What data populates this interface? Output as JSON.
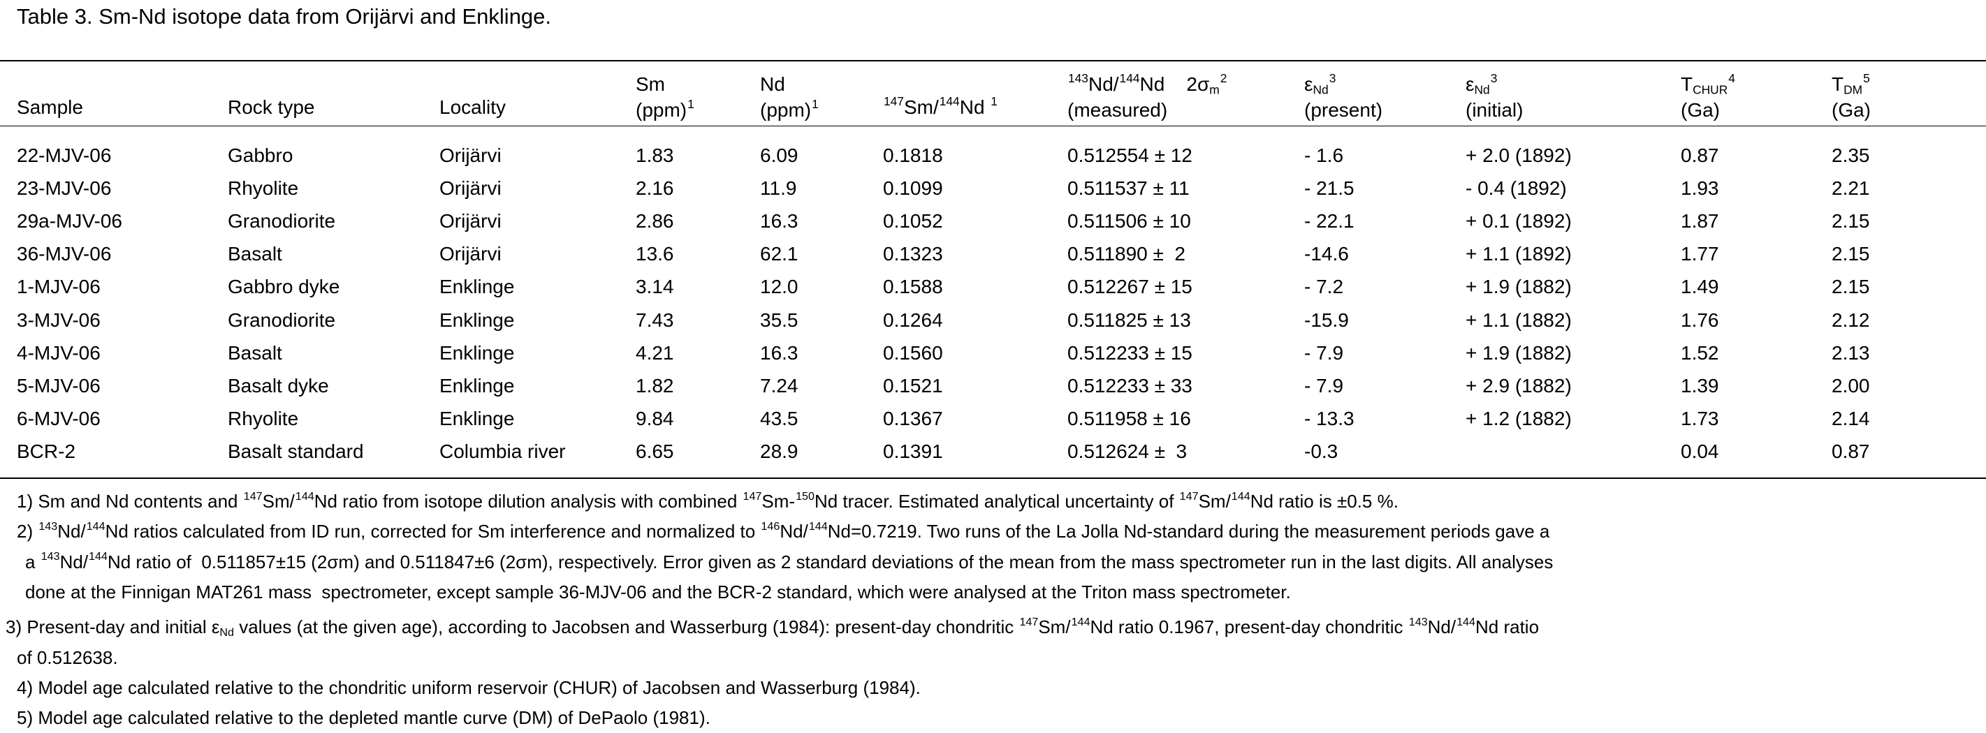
{
  "title": "Table 3. Sm-Nd isotope data from Orijärvi and Enklinge.",
  "table": {
    "header": [
      [
        [
          "Sample"
        ]
      ],
      [
        [
          "Rock type"
        ]
      ],
      [
        [
          "Locality"
        ]
      ],
      [
        [
          "Sm"
        ],
        [
          "(ppm)",
          {
            "sup": "1"
          }
        ]
      ],
      [
        [
          "Nd"
        ],
        [
          "(ppm)",
          {
            "sup": "1"
          }
        ]
      ],
      [
        [
          {
            "sup": "147"
          },
          "Sm/",
          {
            "sup": "144"
          },
          "Nd ",
          {
            "sup": "1"
          }
        ]
      ],
      [
        [
          {
            "sup": "143"
          },
          "Nd/",
          {
            "sup": "144"
          },
          "Nd    2σ",
          {
            "sub": "m"
          },
          {
            "sup": "2"
          }
        ],
        [
          "(measured)"
        ]
      ],
      [
        [
          "ε",
          {
            "sub": "Nd"
          },
          {
            "sup": "3"
          }
        ],
        [
          "(present)"
        ]
      ],
      [
        [
          "ε",
          {
            "sub": "Nd"
          },
          {
            "sup": "3"
          }
        ],
        [
          "(initial)"
        ]
      ],
      [
        [
          "T",
          {
            "sub": "CHUR"
          },
          {
            "sup": "4"
          }
        ],
        [
          "(Ga)"
        ]
      ],
      [
        [
          "T",
          {
            "sub": "DM"
          },
          {
            "sup": "5"
          }
        ],
        [
          "(Ga)"
        ]
      ]
    ],
    "rows": [
      [
        "22-MJV-06",
        "Gabbro",
        "Orijärvi",
        "1.83",
        "6.09",
        "0.1818",
        "0.512554 ± 12",
        "- 1.6",
        "+ 2.0 (1892)",
        "0.87",
        "2.35"
      ],
      [
        "23-MJV-06",
        "Rhyolite",
        "Orijärvi",
        "2.16",
        "11.9",
        "0.1099",
        "0.511537 ± 11",
        "- 21.5",
        "- 0.4 (1892)",
        "1.93",
        "2.21"
      ],
      [
        "29a-MJV-06",
        "Granodiorite",
        "Orijärvi",
        "2.86",
        "16.3",
        "0.1052",
        "0.511506 ± 10",
        "- 22.1",
        "+ 0.1 (1892)",
        "1.87",
        "2.15"
      ],
      [
        "36-MJV-06",
        "Basalt",
        "Orijärvi",
        "13.6",
        "62.1",
        "0.1323",
        "0.511890 ±  2",
        "-14.6",
        "+ 1.1 (1892)",
        "1.77",
        "2.15"
      ],
      [
        "1-MJV-06",
        "Gabbro dyke",
        "Enklinge",
        "3.14",
        "12.0",
        "0.1588",
        "0.512267 ± 15",
        "- 7.2",
        "+ 1.9 (1882)",
        "1.49",
        "2.15"
      ],
      [
        "3-MJV-06",
        "Granodiorite",
        "Enklinge",
        "7.43",
        "35.5",
        "0.1264",
        "0.511825 ± 13",
        "-15.9",
        "+ 1.1 (1882)",
        "1.76",
        "2.12"
      ],
      [
        "4-MJV-06",
        "Basalt",
        "Enklinge",
        "4.21",
        "16.3",
        "0.1560",
        "0.512233 ± 15",
        "- 7.9",
        "+ 1.9 (1882)",
        "1.52",
        "2.13"
      ],
      [
        "5-MJV-06",
        "Basalt dyke",
        "Enklinge",
        "1.82",
        "7.24",
        "0.1521",
        "0.512233 ± 33",
        "- 7.9",
        "+ 2.9 (1882)",
        "1.39",
        "2.00"
      ],
      [
        "6-MJV-06",
        "Rhyolite",
        "Enklinge",
        "9.84",
        "43.5",
        "0.1367",
        "0.511958 ± 16",
        "- 13.3",
        "+ 1.2 (1882)",
        "1.73",
        "2.14"
      ],
      [
        "BCR-2",
        "Basalt standard",
        "Columbia river",
        "6.65",
        "28.9",
        "0.1391",
        "0.512624 ±  3",
        "-0.3",
        null,
        "0.04",
        "0.87"
      ]
    ]
  },
  "footnotes": [
    {
      "lines": [
        [
          "1) Sm and Nd contents and ",
          {
            "sup": "147"
          },
          "Sm/",
          {
            "sup": "144"
          },
          "Nd ratio from isotope dilution analysis with combined ",
          {
            "sup": "147"
          },
          "Sm-",
          {
            "sup": "150"
          },
          "Nd tracer. Estimated analytical uncertainty of ",
          {
            "sup": "147"
          },
          "Sm/",
          {
            "sup": "144"
          },
          "Nd ratio is ±0.5 %."
        ]
      ]
    },
    {
      "lines": [
        [
          "2) ",
          {
            "sup": "143"
          },
          "Nd/",
          {
            "sup": "144"
          },
          "Nd ratios calculated from ID run, corrected for Sm interference and normalized to ",
          {
            "sup": "146"
          },
          "Nd/",
          {
            "sup": "144"
          },
          "Nd=0.7219. Two runs of the La Jolla Nd-standard during the measurement periods gave a"
        ],
        [
          "a ",
          {
            "sup": "143"
          },
          "Nd/",
          {
            "sup": "144"
          },
          "Nd ratio of  0.511857±15 (2σm) and 0.511847±6 (2σm), respectively. Error given as 2 standard deviations of the mean from the mass spectrometer run in the last digits. All analyses"
        ],
        [
          "done at the Finnigan MAT261 mass  spectrometer, except sample 36-MJV-06 and the BCR-2 standard, which were analysed at the Triton mass spectrometer."
        ]
      ]
    },
    {
      "lines": [
        [
          "3) Present-day and initial ε",
          {
            "sub": "Nd"
          },
          " values (at the given age), according to Jacobsen and Wasserburg (1984): present-day chondritic ",
          {
            "sup": "147"
          },
          "Sm/",
          {
            "sup": "144"
          },
          "Nd ratio 0.1967, present-day chondritic ",
          {
            "sup": "143"
          },
          "Nd/",
          {
            "sup": "144"
          },
          "Nd ratio"
        ],
        [
          "of 0.512638."
        ]
      ]
    },
    {
      "lines": [
        [
          "4) Model age calculated relative to the chondritic uniform reservoir (CHUR) of Jacobsen and Wasserburg (1984)."
        ]
      ]
    },
    {
      "lines": [
        [
          "5) Model age calculated relative to the depleted mantle curve (DM) of DePaolo (1981)."
        ]
      ]
    }
  ]
}
